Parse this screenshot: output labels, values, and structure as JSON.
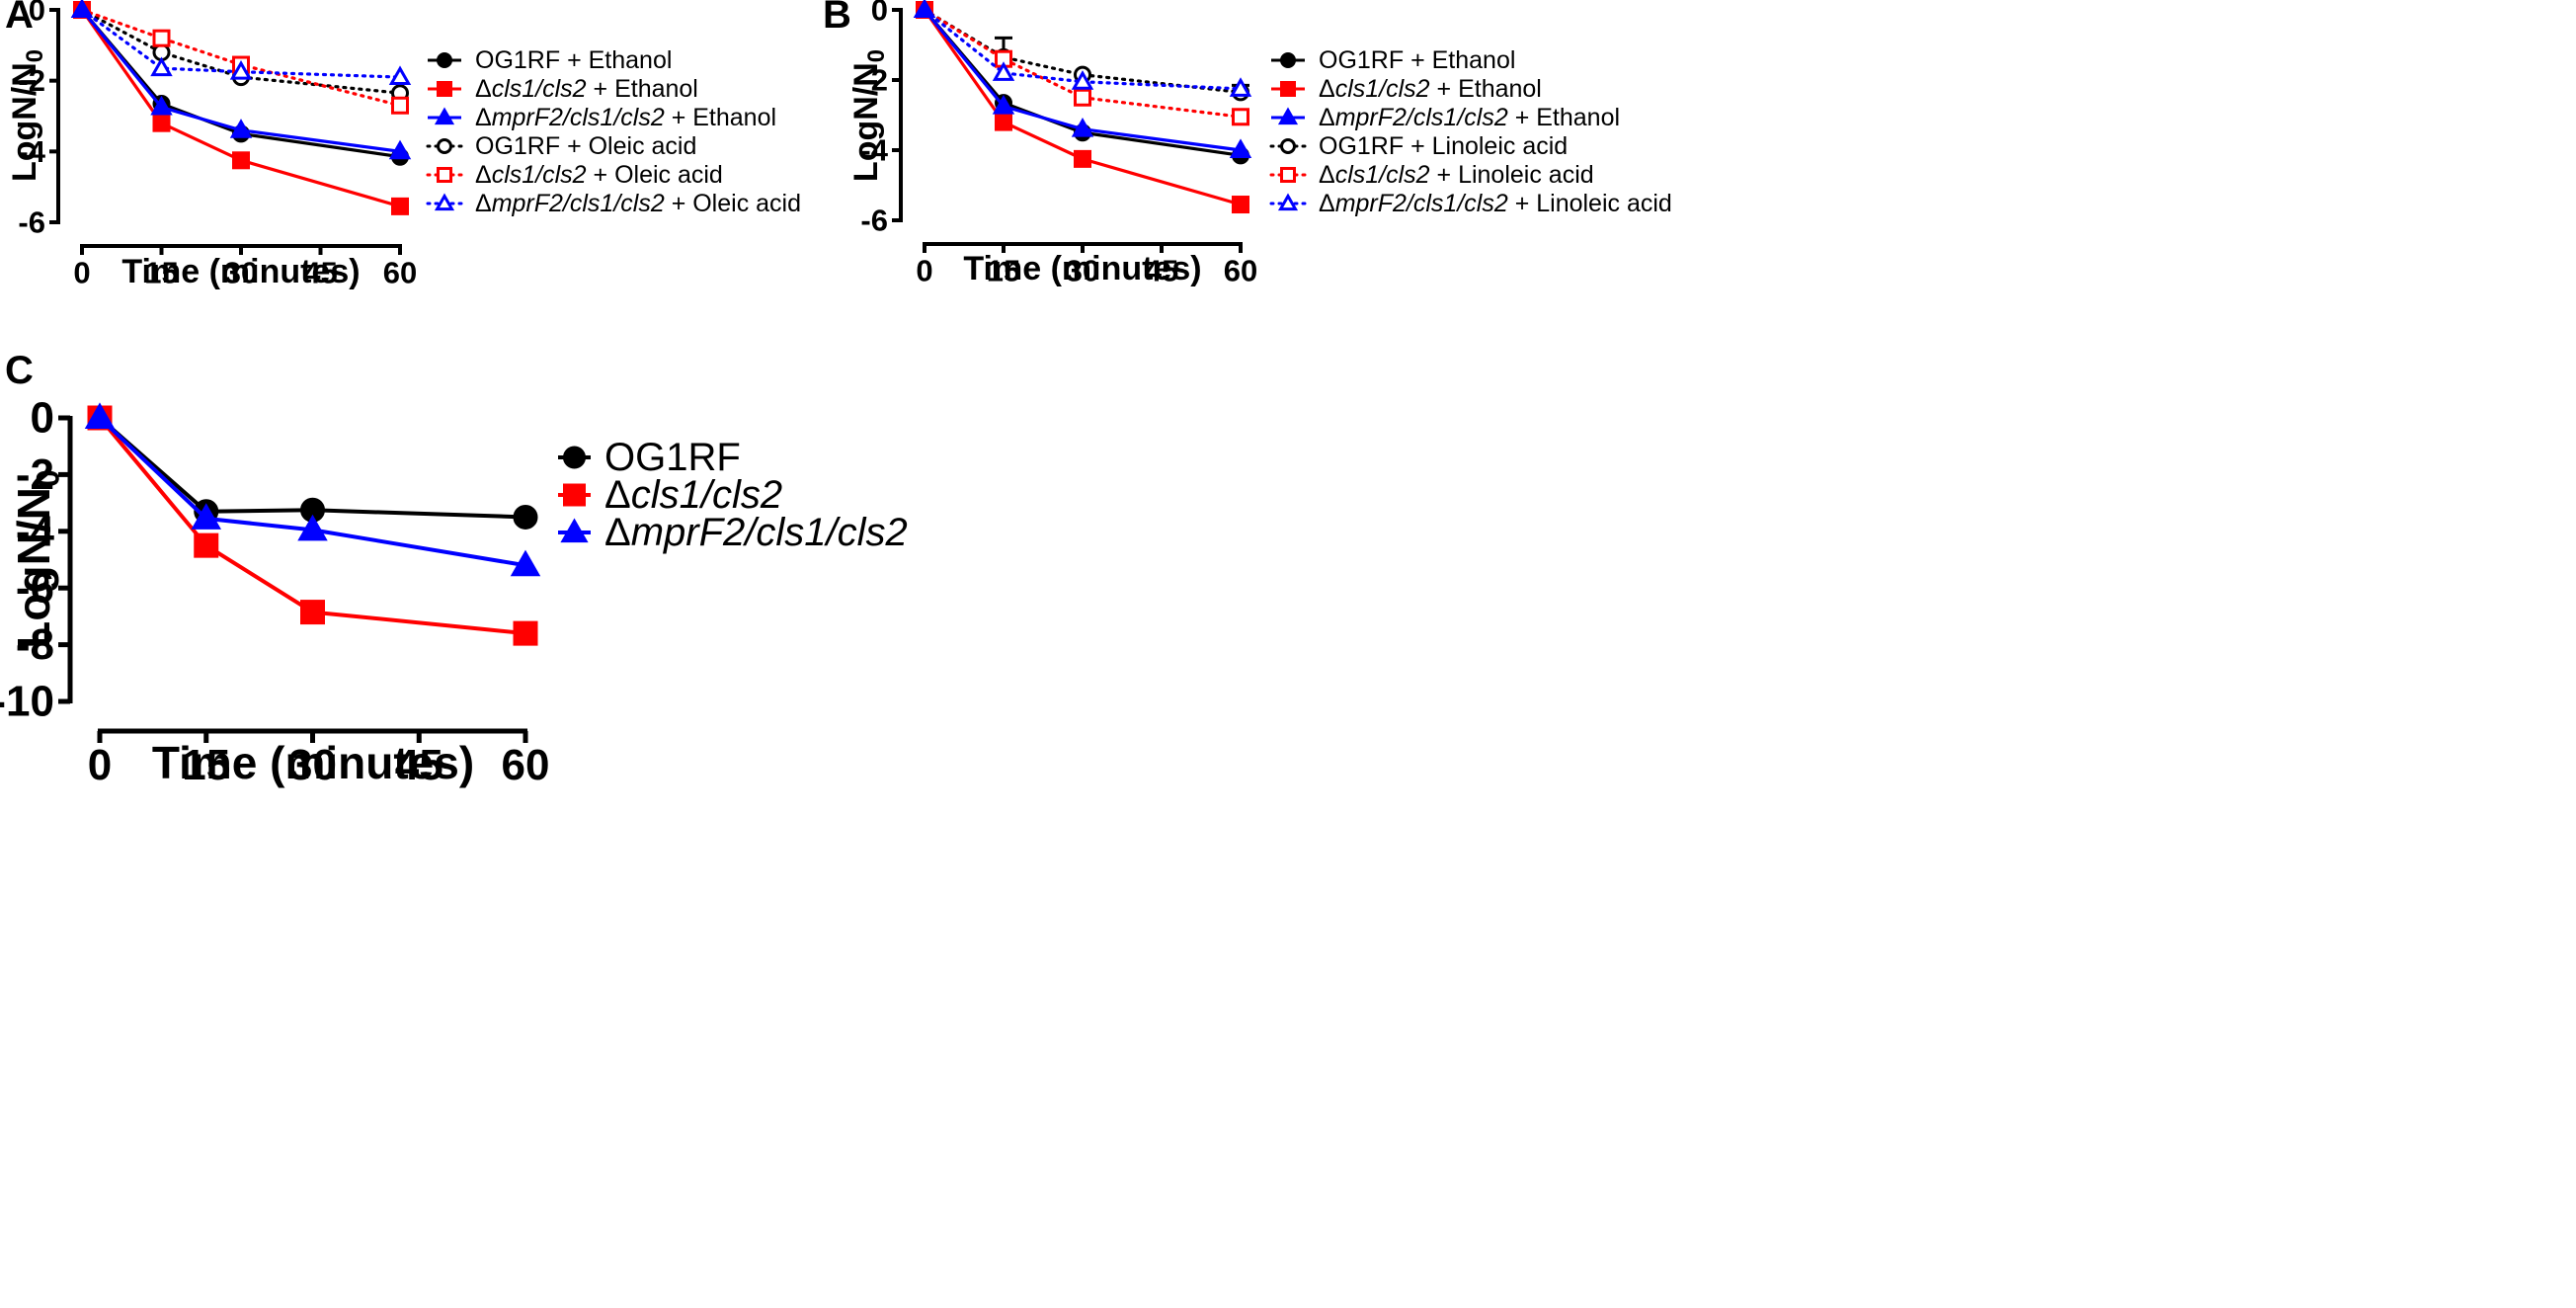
{
  "chart_data": [
    {
      "panel": "A",
      "type": "line",
      "xlabel": "Time (minutes)",
      "ylabel": "LogN/N",
      "ylabel_sub": "0",
      "xlim": [
        0,
        60
      ],
      "ylim": [
        -6,
        0
      ],
      "xticks": [
        "0",
        "15",
        "30",
        "45",
        "60"
      ],
      "yticks": [
        "0",
        "-2",
        "-4",
        "-6"
      ],
      "x": [
        0,
        15,
        30,
        60
      ],
      "series": [
        {
          "name_pre": "OG1RF",
          "name_mid": "",
          "name_italic": "",
          "name_post": " + Ethanol",
          "values": [
            0,
            -2.65,
            -3.5,
            -4.15
          ],
          "errors": [
            0,
            0,
            0,
            0
          ],
          "color": "#000000",
          "marker": "circle",
          "filled": true,
          "dash": false
        },
        {
          "name_pre": "",
          "name_mid": "Δ",
          "name_italic": "cls1/cls2",
          "name_post": " + Ethanol",
          "values": [
            0,
            -3.2,
            -4.25,
            -5.55
          ],
          "errors": [
            0,
            0.2,
            0,
            0
          ],
          "color": "#ff0000",
          "marker": "square",
          "filled": true,
          "dash": false
        },
        {
          "name_pre": "",
          "name_mid": "Δ",
          "name_italic": "mprF2/cls1/cls2",
          "name_post": " + Ethanol",
          "values": [
            0,
            -2.75,
            -3.4,
            -4.0
          ],
          "errors": [
            0,
            0,
            0,
            0
          ],
          "color": "#0000ff",
          "marker": "triangle",
          "filled": true,
          "dash": false
        },
        {
          "name_pre": "OG1RF",
          "name_mid": "",
          "name_italic": "",
          "name_post": " + Oleic acid",
          "values": [
            0,
            -1.2,
            -1.9,
            -2.35
          ],
          "errors": [
            0,
            0,
            0,
            0.3
          ],
          "color": "#000000",
          "marker": "circle",
          "filled": false,
          "dash": true
        },
        {
          "name_pre": "",
          "name_mid": "Δ",
          "name_italic": "cls1/cls2",
          "name_post": " + Oleic acid",
          "values": [
            0,
            -0.8,
            -1.55,
            -2.7
          ],
          "errors": [
            0,
            0,
            0,
            0
          ],
          "color": "#ff0000",
          "marker": "square",
          "filled": false,
          "dash": true
        },
        {
          "name_pre": "",
          "name_mid": "Δ",
          "name_italic": "mprF2/cls1/cls2",
          "name_post": " + Oleic acid",
          "values": [
            0,
            -1.65,
            -1.75,
            -1.9
          ],
          "errors": [
            0,
            0,
            0,
            0
          ],
          "color": "#0000ff",
          "marker": "triangle",
          "filled": false,
          "dash": true
        }
      ]
    },
    {
      "panel": "B",
      "type": "line",
      "xlabel": "Time (minutes)",
      "ylabel": "LogN/N",
      "ylabel_sub": "0",
      "xlim": [
        0,
        60
      ],
      "ylim": [
        -6,
        0
      ],
      "xticks": [
        "0",
        "15",
        "30",
        "45",
        "60"
      ],
      "yticks": [
        "0",
        "-2",
        "-4",
        "-6"
      ],
      "x": [
        0,
        15,
        30,
        60
      ],
      "series": [
        {
          "name_pre": "OG1RF",
          "name_mid": "",
          "name_italic": "",
          "name_post": " + Ethanol",
          "values": [
            0,
            -2.65,
            -3.5,
            -4.15
          ],
          "errors": [
            0,
            0,
            0,
            0
          ],
          "color": "#000000",
          "marker": "circle",
          "filled": true,
          "dash": false
        },
        {
          "name_pre": "",
          "name_mid": "Δ",
          "name_italic": "cls1/cls2",
          "name_post": " + Ethanol",
          "values": [
            0,
            -3.2,
            -4.25,
            -5.55
          ],
          "errors": [
            0,
            0.2,
            0,
            0
          ],
          "color": "#ff0000",
          "marker": "square",
          "filled": true,
          "dash": false
        },
        {
          "name_pre": "",
          "name_mid": "Δ",
          "name_italic": "mprF2/cls1/cls2",
          "name_post": " + Ethanol",
          "values": [
            0,
            -2.75,
            -3.4,
            -4.0
          ],
          "errors": [
            0,
            0,
            0,
            0
          ],
          "color": "#0000ff",
          "marker": "triangle",
          "filled": true,
          "dash": false
        },
        {
          "name_pre": "OG1RF",
          "name_mid": "",
          "name_italic": "",
          "name_post": " + Linoleic acid",
          "values": [
            0,
            -1.35,
            -1.85,
            -2.35
          ],
          "errors": [
            0,
            0.55,
            0,
            0.2
          ],
          "color": "#000000",
          "marker": "circle",
          "filled": false,
          "dash": true
        },
        {
          "name_pre": "",
          "name_mid": "Δ",
          "name_italic": "cls1/cls2",
          "name_post": " + Linoleic acid",
          "values": [
            0,
            -1.4,
            -2.5,
            -3.05
          ],
          "errors": [
            0,
            0,
            0,
            0
          ],
          "color": "#ff0000",
          "marker": "square",
          "filled": false,
          "dash": true
        },
        {
          "name_pre": "",
          "name_mid": "Δ",
          "name_italic": "mprF2/cls1/cls2",
          "name_post": " + Linoleic acid",
          "values": [
            0,
            -1.8,
            -2.05,
            -2.25
          ],
          "errors": [
            0,
            0,
            0,
            0
          ],
          "color": "#0000ff",
          "marker": "triangle",
          "filled": false,
          "dash": true
        }
      ]
    },
    {
      "panel": "C",
      "type": "line",
      "xlabel": "Time (minutes)",
      "ylabel": "LogN/N",
      "ylabel_sub": "0",
      "xlim": [
        0,
        60
      ],
      "ylim": [
        -10,
        0
      ],
      "xticks": [
        "0",
        "15",
        "30",
        "45",
        "60"
      ],
      "yticks": [
        "0",
        "-2",
        "-4",
        "-6",
        "-8",
        "-10"
      ],
      "x": [
        0,
        15,
        30,
        60
      ],
      "series": [
        {
          "name_pre": "OG1RF",
          "name_mid": "",
          "name_italic": "",
          "name_post": "",
          "values": [
            0,
            -3.3,
            -3.25,
            -3.5
          ],
          "errors": [
            0,
            0,
            0,
            0
          ],
          "color": "#000000",
          "marker": "circle",
          "filled": true,
          "dash": false
        },
        {
          "name_pre": "",
          "name_mid": "Δ",
          "name_italic": "cls1/cls2",
          "name_post": "",
          "values": [
            0,
            -4.5,
            -6.85,
            -7.6
          ],
          "errors": [
            0,
            0,
            0,
            0
          ],
          "color": "#ff0000",
          "marker": "square",
          "filled": true,
          "dash": false
        },
        {
          "name_pre": "",
          "name_mid": "Δ",
          "name_italic": "mprF2/cls1/cls2",
          "name_post": "",
          "values": [
            0,
            -3.55,
            -3.95,
            -5.2
          ],
          "errors": [
            0,
            0,
            0,
            0
          ],
          "color": "#0000ff",
          "marker": "triangle",
          "filled": true,
          "dash": false
        }
      ]
    }
  ]
}
